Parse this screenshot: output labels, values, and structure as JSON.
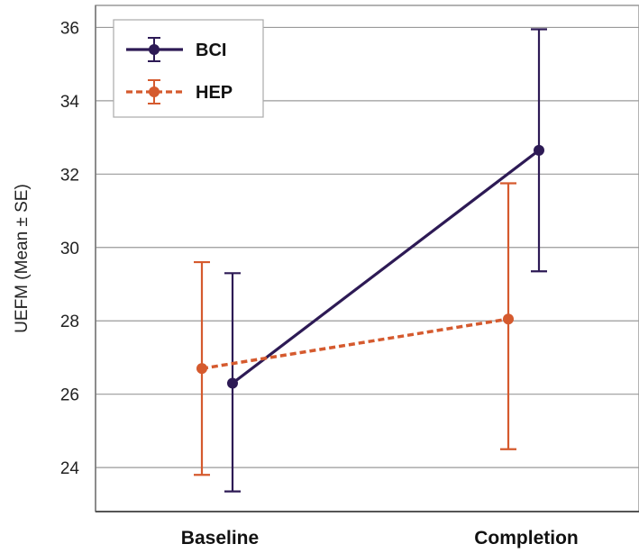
{
  "chart_data": {
    "type": "line",
    "title": "",
    "xlabel": "",
    "ylabel": "UEFM (Mean ± SE)",
    "categories": [
      "Baseline",
      "Completion"
    ],
    "ylim": [
      22.8,
      36.6
    ],
    "yticks": [
      24,
      26,
      28,
      30,
      32,
      34,
      36
    ],
    "grid": "horizontal",
    "legend": "top-left",
    "series": [
      {
        "name": "BCI",
        "color": "#2d1a55",
        "style": "solid",
        "values": [
          26.3,
          32.65
        ],
        "err_low": [
          23.35,
          29.35
        ],
        "err_high": [
          29.3,
          35.95
        ]
      },
      {
        "name": "HEP",
        "color": "#d55a2e",
        "style": "dotted",
        "values": [
          26.7,
          28.05
        ],
        "err_low": [
          23.8,
          24.5
        ],
        "err_high": [
          29.6,
          31.75
        ]
      }
    ]
  }
}
